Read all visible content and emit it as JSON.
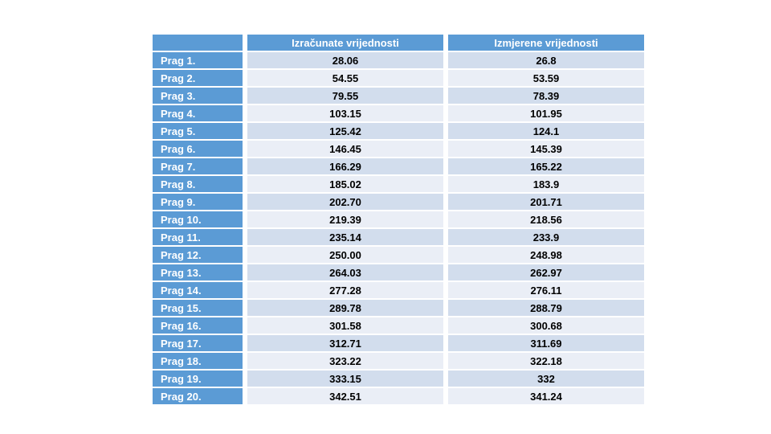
{
  "colors": {
    "header_blue": "#5B9BD5",
    "row_odd": "#D2DDED",
    "row_even": "#EAEEF6",
    "header_text": "#FFFFFF",
    "value_text": "#000000",
    "background": "#FFFFFF"
  },
  "table": {
    "columns": [
      {
        "label": ""
      },
      {
        "label": "Izračunate vrijednosti"
      },
      {
        "label": "Izmjerene vrijednosti"
      }
    ],
    "rows": [
      {
        "label": "Prag 1.",
        "izracunate": "28.06",
        "izmjerene": "26.8"
      },
      {
        "label": "Prag 2.",
        "izracunate": "54.55",
        "izmjerene": "53.59"
      },
      {
        "label": "Prag 3.",
        "izracunate": "79.55",
        "izmjerene": "78.39"
      },
      {
        "label": "Prag 4.",
        "izracunate": "103.15",
        "izmjerene": "101.95"
      },
      {
        "label": "Prag 5.",
        "izracunate": "125.42",
        "izmjerene": "124.1"
      },
      {
        "label": "Prag 6.",
        "izracunate": "146.45",
        "izmjerene": "145.39"
      },
      {
        "label": "Prag 7.",
        "izracunate": "166.29",
        "izmjerene": "165.22"
      },
      {
        "label": "Prag 8.",
        "izracunate": "185.02",
        "izmjerene": "183.9"
      },
      {
        "label": "Prag 9.",
        "izracunate": "202.70",
        "izmjerene": "201.71"
      },
      {
        "label": "Prag 10.",
        "izracunate": "219.39",
        "izmjerene": "218.56"
      },
      {
        "label": "Prag 11.",
        "izracunate": "235.14",
        "izmjerene": "233.9"
      },
      {
        "label": "Prag 12.",
        "izracunate": "250.00",
        "izmjerene": "248.98"
      },
      {
        "label": "Prag 13.",
        "izracunate": "264.03",
        "izmjerene": "262.97"
      },
      {
        "label": "Prag 14.",
        "izracunate": "277.28",
        "izmjerene": "276.11"
      },
      {
        "label": "Prag 15.",
        "izracunate": "289.78",
        "izmjerene": "288.79"
      },
      {
        "label": "Prag 16.",
        "izracunate": "301.58",
        "izmjerene": "300.68"
      },
      {
        "label": "Prag 17.",
        "izracunate": "312.71",
        "izmjerene": "311.69"
      },
      {
        "label": "Prag 18.",
        "izracunate": "323.22",
        "izmjerene": "322.18"
      },
      {
        "label": "Prag 19.",
        "izracunate": "333.15",
        "izmjerene": "332"
      },
      {
        "label": "Prag 20.",
        "izracunate": "342.51",
        "izmjerene": "341.24"
      }
    ]
  }
}
